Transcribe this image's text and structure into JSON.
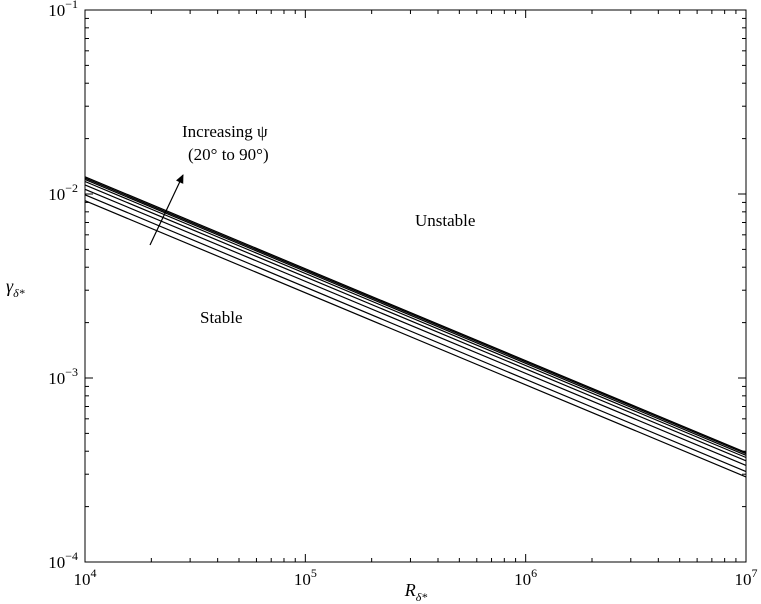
{
  "chart_data": {
    "type": "line",
    "x_scale": "log",
    "y_scale": "log",
    "xlim": [
      10000,
      10000000
    ],
    "ylim": [
      0.0001,
      0.1
    ],
    "x_ticks": [
      {
        "value": 10000,
        "base": "10",
        "exp": "4"
      },
      {
        "value": 100000,
        "base": "10",
        "exp": "5"
      },
      {
        "value": 1000000,
        "base": "10",
        "exp": "6"
      },
      {
        "value": 10000000,
        "base": "10",
        "exp": "7"
      }
    ],
    "y_ticks": [
      {
        "value": 0.0001,
        "base": "10",
        "exp": "−4"
      },
      {
        "value": 0.001,
        "base": "10",
        "exp": "−3"
      },
      {
        "value": 0.01,
        "base": "10",
        "exp": "−2"
      },
      {
        "value": 0.1,
        "base": "10",
        "exp": "−1"
      }
    ],
    "xlabel": {
      "main": "R",
      "sub": "δ*"
    },
    "ylabel": {
      "main": "γ",
      "sub": "δ*"
    },
    "grid": false,
    "series": [
      {
        "x": [
          10000,
          10000000
        ],
        "y": [
          0.0092,
          0.00029
        ]
      },
      {
        "x": [
          10000,
          10000000
        ],
        "y": [
          0.0099,
          0.00031
        ]
      },
      {
        "x": [
          10000,
          10000000
        ],
        "y": [
          0.0106,
          0.000335
        ]
      },
      {
        "x": [
          10000,
          10000000
        ],
        "y": [
          0.0112,
          0.000355
        ]
      },
      {
        "x": [
          10000,
          10000000
        ],
        "y": [
          0.0117,
          0.00037
        ]
      },
      {
        "x": [
          10000,
          10000000
        ],
        "y": [
          0.012,
          0.00038
        ]
      },
      {
        "x": [
          10000,
          10000000
        ],
        "y": [
          0.0122,
          0.000388
        ]
      },
      {
        "x": [
          10000,
          10000000
        ],
        "y": [
          0.0124,
          0.000393
        ]
      }
    ],
    "annotations": {
      "increasing_line1": "Increasing ψ",
      "increasing_line2": "(20° to 90°)",
      "unstable": "Unstable",
      "stable": "Stable"
    }
  }
}
